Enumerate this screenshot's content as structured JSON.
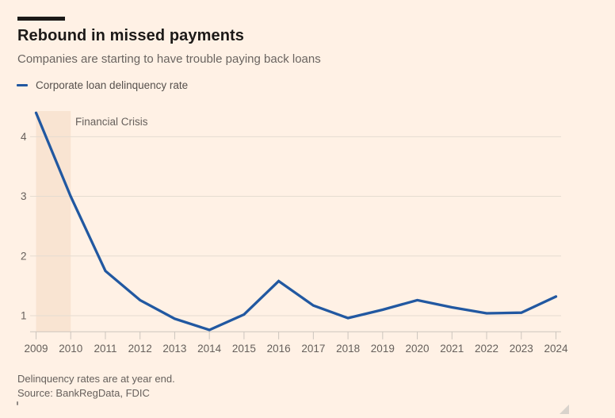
{
  "page": {
    "background": "#FFF1E5"
  },
  "header": {
    "title": "Rebound in missed payments",
    "subtitle": "Companies are starting to have trouble paying back loans"
  },
  "legend": {
    "label": "Corporate loan delinquency rate",
    "marker_color": "#2158A1"
  },
  "annotation": {
    "label": "Financial Crisis"
  },
  "footer": {
    "note": "Delinquency rates are at year end.",
    "source": "Source: BankRegData, FDIC"
  },
  "chart_data": {
    "type": "line",
    "title": "Rebound in missed payments",
    "subtitle": "Companies are starting to have trouble paying back loans",
    "x": [
      2009,
      2010,
      2011,
      2012,
      2013,
      2014,
      2015,
      2016,
      2017,
      2018,
      2019,
      2020,
      2021,
      2022,
      2023,
      2024
    ],
    "series": [
      {
        "name": "Corporate loan delinquency rate",
        "color": "#2158A1",
        "values": [
          4.4,
          3.0,
          1.75,
          1.26,
          0.95,
          0.76,
          1.02,
          1.58,
          1.17,
          0.96,
          1.1,
          1.26,
          1.14,
          1.04,
          1.05,
          1.32
        ]
      }
    ],
    "y_ticks": [
      1,
      2,
      3,
      4
    ],
    "ylim": [
      0.73,
      4.43
    ],
    "xlim": [
      2009,
      2024
    ],
    "grid": "horizontal",
    "legend_position": "top-left",
    "annotations": [
      {
        "type": "band",
        "label": "Financial Crisis",
        "x_start": 2009,
        "x_end": 2010,
        "color": "#F9E4D2"
      }
    ],
    "colors": {
      "background": "#FFF1E5",
      "band": "#F9E4D2",
      "line": "#2158A1",
      "grid": "#E5DCD1",
      "axis": "#CCC5BD",
      "tick_label": "#66605C",
      "title": "#1C1A18"
    }
  }
}
